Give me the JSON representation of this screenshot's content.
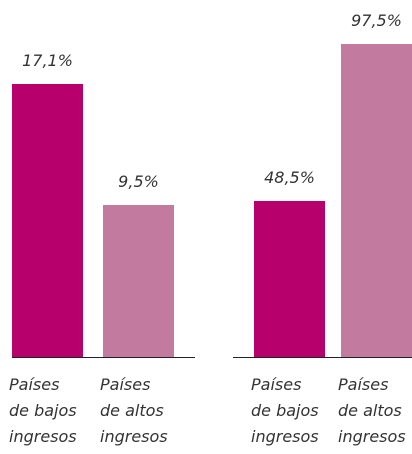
{
  "chart_data": [
    {
      "type": "bar",
      "categories": [
        "Países\nde bajos\ningresos",
        "Países\nde altos\ningresos"
      ],
      "values": [
        17.1,
        9.5
      ],
      "value_labels": [
        "17,1%",
        "9,5%"
      ],
      "colors": [
        "#b8006c",
        "#c27a9f"
      ]
    },
    {
      "type": "bar",
      "categories": [
        "Países\nde bajos\ningresos",
        "Países\nde altos\ningresos"
      ],
      "values": [
        48.5,
        97.5
      ],
      "value_labels": [
        "48,5%",
        "97,5%"
      ],
      "colors": [
        "#b8006c",
        "#c27a9f"
      ]
    }
  ]
}
